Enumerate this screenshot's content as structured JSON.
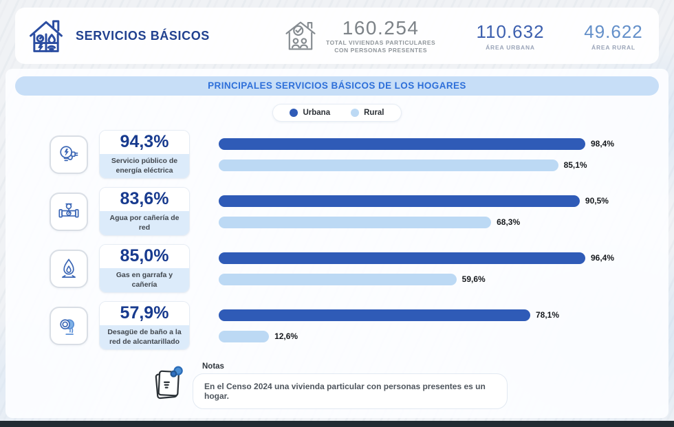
{
  "header": {
    "title": "SERVICIOS BÁSICOS",
    "total": {
      "value": "160.254",
      "label_line1": "TOTAL VIVIENDAS PARTICULARES",
      "label_line2": "CON PERSONAS PRESENTES"
    },
    "urban": {
      "value": "110.632",
      "label": "ÁREA URBANA"
    },
    "rural": {
      "value": "49.622",
      "label": "ÁREA RURAL"
    }
  },
  "section": {
    "title": "PRINCIPALES SERVICIOS BÁSICOS DE LOS HOGARES"
  },
  "legend": [
    {
      "label": "Urbana",
      "color": "#2f5bb7"
    },
    {
      "label": "Rural",
      "color": "#bcd9f4"
    }
  ],
  "chart_data": {
    "type": "bar",
    "orientation": "horizontal",
    "title": "Principales servicios básicos de los hogares",
    "categories": [
      "Servicio público de energía eléctrica",
      "Agua por cañería de red",
      "Gas en garrafa y cañería",
      "Desagüe de baño a la red de alcantarillado"
    ],
    "total_percent": [
      94.3,
      83.6,
      85.0,
      57.9
    ],
    "series": [
      {
        "name": "Urbana",
        "values": [
          98.4,
          90.5,
          96.4,
          78.1
        ],
        "color": "#2f5bb7"
      },
      {
        "name": "Rural",
        "values": [
          85.1,
          68.3,
          59.6,
          12.6
        ],
        "color": "#bcd9f4"
      }
    ],
    "xlim": [
      0,
      100
    ],
    "grid": false,
    "legend_position": "top-center",
    "value_labels": "end-of-bar"
  },
  "rows": [
    {
      "pct": "94,3%",
      "desc": "Servicio público de energía eléctrica",
      "urbana": {
        "value": 98.4,
        "label": "98,4%"
      },
      "rural": {
        "value": 85.1,
        "label": "85,1%"
      }
    },
    {
      "pct": "83,6%",
      "desc": "Agua por cañería de red",
      "urbana": {
        "value": 90.5,
        "label": "90,5%"
      },
      "rural": {
        "value": 68.3,
        "label": "68,3%"
      }
    },
    {
      "pct": "85,0%",
      "desc": "Gas en garrafa y cañería",
      "urbana": {
        "value": 96.4,
        "label": "96,4%"
      },
      "rural": {
        "value": 59.6,
        "label": "59,6%"
      }
    },
    {
      "pct": "57,9%",
      "desc": "Desagüe de baño a la red de alcantarillado",
      "urbana": {
        "value": 78.1,
        "label": "78,1%"
      },
      "rural": {
        "value": 12.6,
        "label": "12,6%"
      }
    }
  ],
  "notes": {
    "label": "Notas",
    "text": "En el Censo 2024 una vivienda particular con personas presentes es un hogar."
  }
}
